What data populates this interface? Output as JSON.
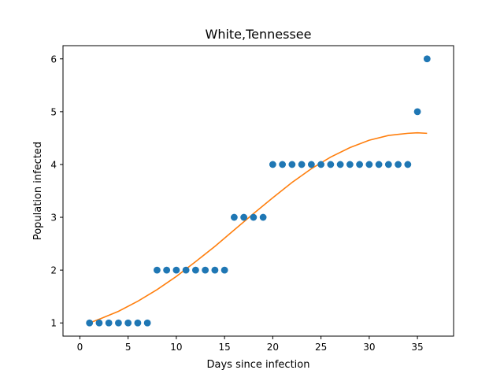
{
  "chart_data": {
    "type": "scatter",
    "title": "White,Tennessee",
    "xlabel": "Days since infection",
    "ylabel": "Population infected",
    "xlim": [
      -1.75,
      38.75
    ],
    "ylim": [
      0.75,
      6.25
    ],
    "xticks": [
      0,
      5,
      10,
      15,
      20,
      25,
      30,
      35
    ],
    "yticks": [
      1,
      2,
      3,
      4,
      5,
      6
    ],
    "grid": false,
    "series": [
      {
        "kind": "scatter",
        "color": "#1f77b4",
        "x": [
          1,
          2,
          3,
          4,
          5,
          6,
          7,
          8,
          9,
          10,
          11,
          12,
          13,
          14,
          15,
          16,
          17,
          18,
          19,
          20,
          21,
          22,
          23,
          24,
          25,
          26,
          27,
          28,
          29,
          30,
          31,
          32,
          33,
          34,
          35,
          36
        ],
        "y": [
          1,
          1,
          1,
          1,
          1,
          1,
          1,
          2,
          2,
          2,
          2,
          2,
          2,
          2,
          2,
          3,
          3,
          3,
          3,
          4,
          4,
          4,
          4,
          4,
          4,
          4,
          4,
          4,
          4,
          4,
          4,
          4,
          4,
          4,
          5,
          6
        ]
      },
      {
        "kind": "line",
        "color": "#ff7f0e",
        "x": [
          1,
          2,
          4,
          6,
          8,
          10,
          12,
          14,
          16,
          18,
          20,
          22,
          24,
          26,
          28,
          30,
          32,
          34,
          35,
          36
        ],
        "y": [
          1.0,
          1.07,
          1.22,
          1.41,
          1.63,
          1.88,
          2.16,
          2.45,
          2.76,
          3.07,
          3.37,
          3.66,
          3.92,
          4.14,
          4.32,
          4.46,
          4.55,
          4.59,
          4.6,
          4.59
        ]
      }
    ]
  }
}
